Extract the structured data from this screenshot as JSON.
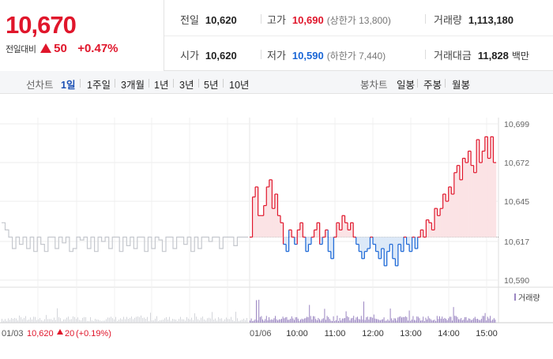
{
  "quote": {
    "price": "10,670",
    "change_label": "전일대비",
    "change_value": "50",
    "change_pct": "+0.47%",
    "prev_close": {
      "label": "전일",
      "value": "10,620"
    },
    "open": {
      "label": "시가",
      "value": "10,620"
    },
    "high": {
      "label": "고가",
      "value": "10,690",
      "sub": "(상한가 13,800)"
    },
    "low": {
      "label": "저가",
      "value": "10,590",
      "sub": "(하한가 7,440)"
    },
    "volume": {
      "label": "거래량",
      "value": "1,113,180"
    },
    "amount": {
      "label": "거래대금",
      "value": "11,828",
      "unit": "백만"
    }
  },
  "tabs": {
    "line_label": "선차트",
    "line_periods": [
      "1일",
      "1주일",
      "3개월",
      "1년",
      "3년",
      "5년",
      "10년"
    ],
    "active_period": "1일",
    "candle_label": "봉차트",
    "candle_periods": [
      "일봉",
      "주봉",
      "월봉"
    ]
  },
  "chart_data": {
    "type": "line",
    "ylim": [
      10590,
      10699
    ],
    "yticks": [
      "10,699",
      "10,672",
      "10,645",
      "10,617",
      "10,590"
    ],
    "reference_price": 10620,
    "prev_day": {
      "date": "01/03",
      "close": "10,620",
      "change": "20",
      "pct": "(+0.19%)"
    },
    "current_date": "01/06",
    "xticks": [
      "10:00",
      "11:00",
      "12:00",
      "13:00",
      "14:00",
      "15:00"
    ],
    "volume_legend": "거래량",
    "colors": {
      "up": "#e0162b",
      "down": "#1a66d6",
      "prev": "#c5c8ce",
      "up_fill": "#fbe3e5",
      "down_fill": "#dce9f8"
    },
    "prev_series": [
      10630,
      10625,
      10620,
      10612,
      10620,
      10615,
      10620,
      10612,
      10620,
      10610,
      10620,
      10615,
      10610,
      10620,
      10620,
      10612,
      10620,
      10616,
      10620,
      10610,
      10612,
      10620,
      10618,
      10620,
      10612,
      10620,
      10610,
      10620,
      10617,
      10620,
      10612,
      10620,
      10620,
      10610,
      10620,
      10614,
      10620,
      10612,
      10620,
      10620,
      10610,
      10620,
      10612,
      10620,
      10618,
      10610,
      10620,
      10620,
      10612,
      10620,
      10620,
      10615,
      10620,
      10610,
      10620,
      10612,
      10620,
      10620,
      10617,
      10620,
      10620,
      10612,
      10620,
      10620,
      10620,
      10614,
      10620,
      10620,
      10620,
      10620
    ],
    "today_series": [
      10620,
      10648,
      10655,
      10635,
      10635,
      10642,
      10655,
      10660,
      10640,
      10650,
      10635,
      10630,
      10615,
      10610,
      10625,
      10620,
      10615,
      10625,
      10630,
      10620,
      10610,
      10615,
      10620,
      10625,
      10630,
      10615,
      10620,
      10625,
      10610,
      10605,
      10620,
      10630,
      10625,
      10635,
      10630,
      10625,
      10630,
      10620,
      10615,
      10610,
      10605,
      10610,
      10612,
      10620,
      10615,
      10610,
      10605,
      10612,
      10600,
      10610,
      10615,
      10605,
      10600,
      10615,
      10610,
      10620,
      10615,
      10610,
      10620,
      10612,
      10620,
      10625,
      10620,
      10632,
      10630,
      10625,
      10640,
      10635,
      10640,
      10650,
      10645,
      10655,
      10650,
      10665,
      10670,
      10660,
      10675,
      10672,
      10680,
      10670,
      10665,
      10688,
      10672,
      10680,
      10690,
      10675,
      10690,
      10672,
      10672
    ]
  }
}
